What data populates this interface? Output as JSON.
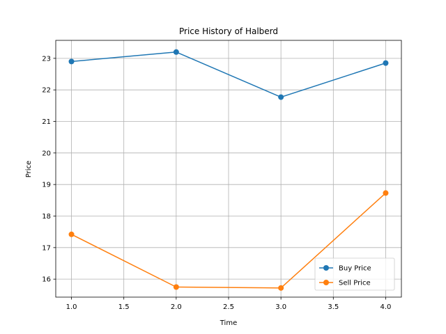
{
  "chart_data": {
    "type": "line",
    "title": "Price History of Halberd",
    "xlabel": "Time",
    "ylabel": "Price",
    "x": [
      1.0,
      2.0,
      3.0,
      4.0
    ],
    "xlim": [
      0.85,
      4.15
    ],
    "ylim": [
      15.43,
      23.57
    ],
    "xticks": [
      "1.0",
      "1.5",
      "2.0",
      "2.5",
      "3.0",
      "3.5",
      "4.0"
    ],
    "yticks": [
      "16",
      "17",
      "18",
      "19",
      "20",
      "21",
      "22",
      "23"
    ],
    "grid": true,
    "legend_position": "lower-right",
    "series": [
      {
        "name": "Buy Price",
        "values": [
          22.9,
          23.2,
          21.77,
          22.85
        ],
        "color": "#1f77b4",
        "marker": "circle"
      },
      {
        "name": "Sell Price",
        "values": [
          17.42,
          15.75,
          15.72,
          18.73
        ],
        "color": "#ff7f0e",
        "marker": "circle"
      }
    ]
  }
}
